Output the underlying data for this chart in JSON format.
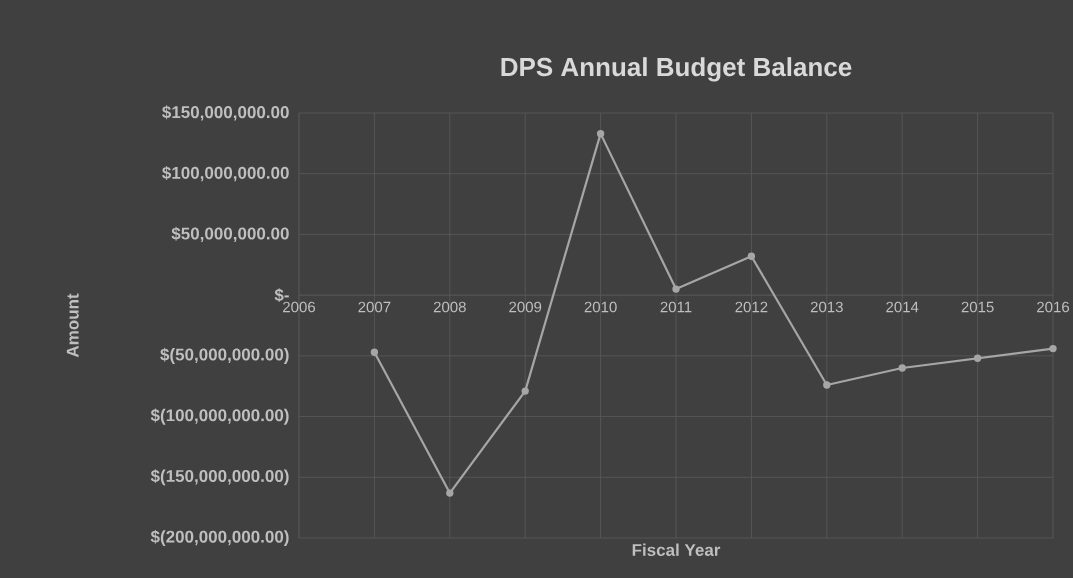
{
  "chart_data": {
    "type": "line",
    "title": "DPS Annual Budget Balance",
    "xlabel": "Fiscal Year",
    "ylabel": "Amount",
    "x": [
      2007,
      2008,
      2009,
      2010,
      2011,
      2012,
      2013,
      2014,
      2015,
      2016
    ],
    "series": [
      {
        "color": "#a6a6a6",
        "values": [
          -47000000,
          -163000000,
          -79000000,
          133000000,
          5000000,
          32000000,
          -74000000,
          -60000000,
          -52000000,
          -44000000
        ]
      }
    ],
    "xlim": [
      2006,
      2016
    ],
    "xticks": [
      2006,
      2007,
      2008,
      2009,
      2010,
      2011,
      2012,
      2013,
      2014,
      2015,
      2016
    ],
    "ylim": [
      -200000000,
      150000000
    ],
    "yticks": [
      {
        "value": -200000000,
        "label": "$(200,000,000.00)"
      },
      {
        "value": -150000000,
        "label": "$(150,000,000.00)"
      },
      {
        "value": -100000000,
        "label": "$(100,000,000.00)"
      },
      {
        "value": -50000000,
        "label": "$(50,000,000.00)"
      },
      {
        "value": 0,
        "label": "$-"
      },
      {
        "value": 50000000,
        "label": "$50,000,000.00"
      },
      {
        "value": 100000000,
        "label": "$100,000,000.00"
      },
      {
        "value": 150000000,
        "label": "$150,000,000.00"
      }
    ],
    "grid": true,
    "marker": "circle",
    "line_style": "solid"
  }
}
